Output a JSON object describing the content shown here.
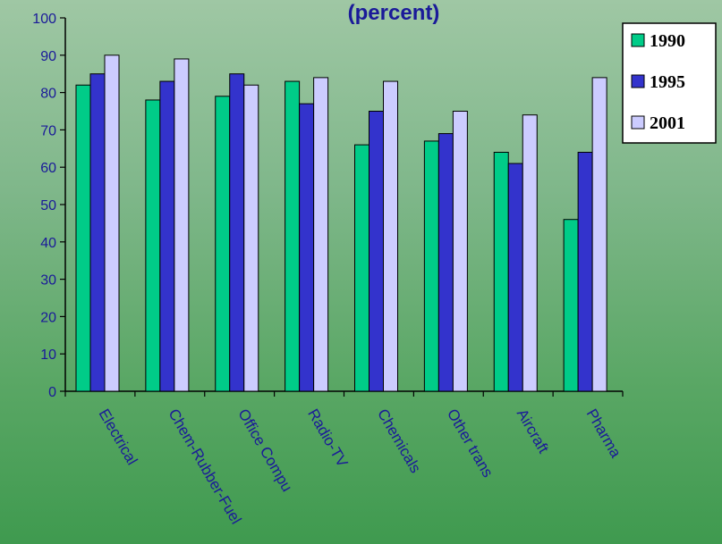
{
  "chart_data": {
    "type": "bar",
    "title": "(percent)",
    "categories": [
      "Electrical",
      "Chem-Rubber-Fuel",
      "Office Compu",
      "Radio-TV",
      "Chemicals",
      "Other trans",
      "Aircraft",
      "Pharma"
    ],
    "series": [
      {
        "name": "1990",
        "color": "#00cc88",
        "values": [
          82,
          78,
          79,
          83,
          66,
          67,
          64,
          46
        ]
      },
      {
        "name": "1995",
        "color": "#3333cc",
        "values": [
          85,
          83,
          85,
          77,
          75,
          69,
          61,
          64
        ]
      },
      {
        "name": "2001",
        "color": "#ccccff",
        "values": [
          90,
          89,
          82,
          84,
          83,
          75,
          74,
          84
        ]
      }
    ],
    "yticks": [
      "0",
      "10",
      "20",
      "30",
      "40",
      "50",
      "60",
      "70",
      "80",
      "90",
      "100"
    ],
    "ylim": [
      0,
      100
    ],
    "legend_position": "top-right",
    "grid": false
  }
}
